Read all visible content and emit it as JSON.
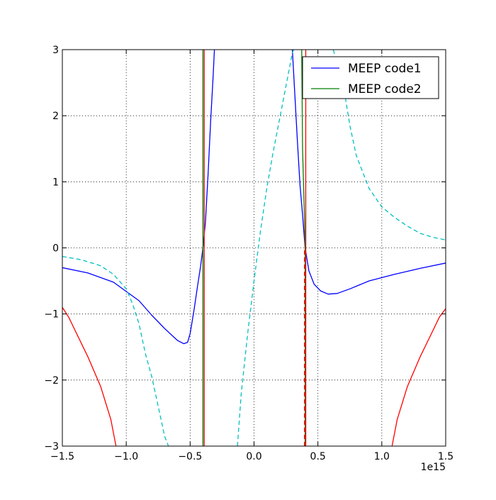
{
  "chart_data": {
    "type": "line",
    "title": "",
    "xlabel": "",
    "ylabel": "",
    "x_offset_label": "1e15",
    "xlim": [
      -1.5,
      1.5
    ],
    "ylim": [
      -3,
      3
    ],
    "grid": true,
    "legend_position": "top-right",
    "x_ticks": [
      -1.5,
      -1.0,
      -0.5,
      0.0,
      0.5,
      1.0,
      1.5
    ],
    "x_tick_labels": [
      "−1.5",
      "−1.0",
      "−0.5",
      "0.0",
      "0.5",
      "1.0",
      "1.5"
    ],
    "y_ticks": [
      -3,
      -2,
      -1,
      0,
      1,
      2,
      3
    ],
    "y_tick_labels": [
      "−3",
      "−2",
      "−1",
      "0",
      "1",
      "2",
      "3"
    ],
    "series": [
      {
        "name": "MEEP code1",
        "color": "#0000ff",
        "style": "solid",
        "in_legend": true,
        "segments": [
          [
            [
              -1.5,
              -0.3
            ],
            [
              -1.3,
              -0.38
            ],
            [
              -1.1,
              -0.52
            ],
            [
              -0.9,
              -0.8
            ],
            [
              -0.8,
              -1.02
            ],
            [
              -0.7,
              -1.22
            ],
            [
              -0.6,
              -1.4
            ],
            [
              -0.55,
              -1.45
            ],
            [
              -0.52,
              -1.43
            ],
            [
              -0.5,
              -1.3
            ],
            [
              -0.47,
              -0.95
            ],
            [
              -0.44,
              -0.55
            ],
            [
              -0.42,
              -0.3
            ],
            [
              -0.4,
              0.0
            ],
            [
              -0.38,
              0.4
            ],
            [
              -0.36,
              1.1
            ],
            [
              -0.34,
              1.9
            ],
            [
              -0.32,
              2.6
            ],
            [
              -0.31,
              3.0
            ]
          ],
          [
            [
              0.3,
              3.0
            ],
            [
              0.32,
              2.3
            ],
            [
              0.34,
              1.6
            ],
            [
              0.36,
              0.95
            ],
            [
              0.38,
              0.5
            ],
            [
              0.4,
              0.0
            ],
            [
              0.43,
              -0.35
            ],
            [
              0.47,
              -0.55
            ],
            [
              0.52,
              -0.65
            ],
            [
              0.58,
              -0.7
            ],
            [
              0.65,
              -0.69
            ],
            [
              0.75,
              -0.62
            ],
            [
              0.9,
              -0.5
            ],
            [
              1.1,
              -0.4
            ],
            [
              1.3,
              -0.31
            ],
            [
              1.5,
              -0.23
            ]
          ]
        ]
      },
      {
        "name": "MEEP code2",
        "color": "#008000",
        "style": "solid",
        "in_legend": true,
        "segments": [
          [
            [
              -0.4,
              -3.0
            ],
            [
              -0.4,
              3.0
            ]
          ],
          [
            [
              0.373,
              3.0
            ],
            [
              0.38,
              1.5
            ],
            [
              0.39,
              0.8
            ],
            [
              0.395,
              0.45
            ],
            [
              0.4,
              0.0
            ]
          ],
          [
            [
              0.4,
              -3.0
            ],
            [
              0.4,
              0.0
            ]
          ]
        ]
      },
      {
        "color": "#ff0000",
        "style": "solid",
        "in_legend": false,
        "segments": [
          [
            [
              -1.5,
              -0.9
            ],
            [
              -1.45,
              -1.05
            ],
            [
              -1.4,
              -1.25
            ],
            [
              -1.3,
              -1.65
            ],
            [
              -1.2,
              -2.1
            ],
            [
              -1.12,
              -2.6
            ],
            [
              -1.08,
              -3.0
            ]
          ],
          [
            [
              -0.39,
              -3.0
            ],
            [
              -0.39,
              3.0
            ]
          ],
          [
            [
              0.405,
              -3.0
            ],
            [
              0.405,
              3.0
            ]
          ],
          [
            [
              1.08,
              -3.0
            ],
            [
              1.12,
              -2.6
            ],
            [
              1.2,
              -2.1
            ],
            [
              1.3,
              -1.65
            ],
            [
              1.4,
              -1.25
            ],
            [
              1.45,
              -1.05
            ],
            [
              1.5,
              -0.92
            ]
          ]
        ]
      },
      {
        "color": "#00bfbf",
        "style": "dashed",
        "in_legend": false,
        "segments": [
          [
            [
              -1.5,
              -0.13
            ],
            [
              -1.35,
              -0.18
            ],
            [
              -1.2,
              -0.27
            ],
            [
              -1.1,
              -0.4
            ],
            [
              -1.0,
              -0.62
            ],
            [
              -0.95,
              -0.85
            ],
            [
              -0.9,
              -1.15
            ],
            [
              -0.85,
              -1.6
            ],
            [
              -0.8,
              -1.95
            ],
            [
              -0.75,
              -2.4
            ],
            [
              -0.7,
              -2.85
            ],
            [
              -0.67,
              -3.0
            ]
          ],
          [
            [
              -0.13,
              -3.0
            ],
            [
              -0.1,
              -2.2
            ],
            [
              -0.05,
              -1.3
            ],
            [
              0.0,
              -0.5
            ],
            [
              0.05,
              0.25
            ],
            [
              0.1,
              0.9
            ],
            [
              0.15,
              1.45
            ],
            [
              0.2,
              1.95
            ],
            [
              0.25,
              2.45
            ],
            [
              0.3,
              2.95
            ],
            [
              0.31,
              3.0
            ]
          ],
          [
            [
              0.62,
              3.0
            ],
            [
              0.7,
              2.45
            ],
            [
              0.75,
              1.85
            ],
            [
              0.8,
              1.4
            ],
            [
              0.9,
              0.9
            ],
            [
              1.0,
              0.62
            ],
            [
              1.1,
              0.46
            ],
            [
              1.2,
              0.33
            ],
            [
              1.3,
              0.22
            ],
            [
              1.4,
              0.16
            ],
            [
              1.5,
              0.12
            ]
          ]
        ]
      },
      {
        "color": "#ff0000",
        "style": "dashed",
        "in_legend": false,
        "segments": [
          [
            [
              0.395,
              -3.0
            ],
            [
              0.395,
              0.0
            ]
          ]
        ]
      }
    ]
  }
}
